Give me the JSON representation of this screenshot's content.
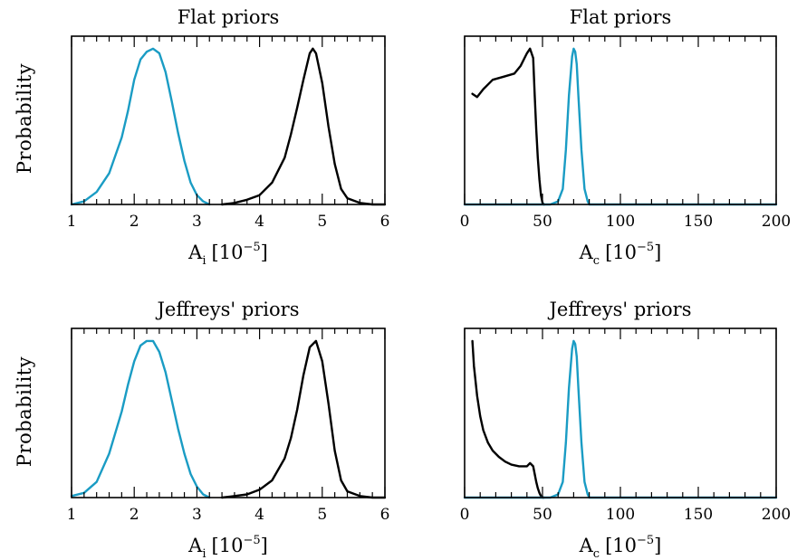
{
  "figure": {
    "ylabel": "Probability"
  },
  "colors": {
    "cyan": "#1a9cc4",
    "black": "#000000"
  },
  "chart_data": [
    {
      "id": "top-left",
      "type": "line",
      "title": "Flat priors",
      "xlabel": {
        "base": "A",
        "sub": "i",
        "unit": "[10",
        "exp": "−5",
        "close": "]"
      },
      "ylabel": "Probability",
      "xlim": [
        1,
        6
      ],
      "ylim": [
        0,
        1.08
      ],
      "xticks": [
        1,
        2,
        3,
        4,
        5,
        6
      ],
      "minor_step": 0.2,
      "series": [
        {
          "color": "cyan",
          "x": [
            1.0,
            1.2,
            1.4,
            1.6,
            1.8,
            1.9,
            2.0,
            2.1,
            2.2,
            2.3,
            2.4,
            2.5,
            2.6,
            2.7,
            2.8,
            2.9,
            3.0,
            3.1,
            3.2
          ],
          "y": [
            0.0,
            0.02,
            0.08,
            0.2,
            0.43,
            0.6,
            0.8,
            0.93,
            0.98,
            1.0,
            0.97,
            0.85,
            0.66,
            0.46,
            0.28,
            0.14,
            0.06,
            0.02,
            0.0
          ]
        },
        {
          "color": "black",
          "x": [
            3.4,
            3.6,
            3.8,
            4.0,
            4.2,
            4.4,
            4.5,
            4.6,
            4.7,
            4.8,
            4.85,
            4.9,
            5.0,
            5.1,
            5.2,
            5.3,
            5.4,
            5.6,
            5.8,
            6.0
          ],
          "y": [
            0.0,
            0.01,
            0.03,
            0.06,
            0.14,
            0.3,
            0.45,
            0.62,
            0.8,
            0.97,
            1.0,
            0.97,
            0.78,
            0.5,
            0.26,
            0.1,
            0.04,
            0.01,
            0.0,
            0.0
          ]
        }
      ]
    },
    {
      "id": "top-right",
      "type": "line",
      "title": "Flat priors",
      "xlabel": {
        "base": "A",
        "sub": "c",
        "unit": "[10",
        "exp": "−5",
        "close": "]"
      },
      "ylabel": "",
      "xlim": [
        0,
        200
      ],
      "ylim": [
        0,
        1.08
      ],
      "xticks": [
        0,
        50,
        100,
        150,
        200
      ],
      "minor_step": 10,
      "series": [
        {
          "color": "black",
          "x": [
            5,
            8,
            12,
            18,
            25,
            32,
            36,
            40,
            42,
            44,
            45,
            46,
            47,
            48,
            49,
            50,
            51
          ],
          "y": [
            0.71,
            0.69,
            0.74,
            0.8,
            0.82,
            0.84,
            0.89,
            0.97,
            1.0,
            0.94,
            0.7,
            0.48,
            0.3,
            0.16,
            0.06,
            0.01,
            0.0
          ]
        },
        {
          "color": "cyan",
          "x": [
            0,
            55,
            60,
            63,
            65,
            67,
            69,
            70,
            71,
            72,
            73,
            75,
            77,
            79,
            80,
            85,
            200
          ],
          "y": [
            0,
            0,
            0.02,
            0.1,
            0.35,
            0.7,
            0.95,
            1.0,
            0.98,
            0.9,
            0.7,
            0.35,
            0.1,
            0.02,
            0.0,
            0,
            0
          ]
        }
      ]
    },
    {
      "id": "bottom-left",
      "type": "line",
      "title": "Jeffreys' priors",
      "xlabel": {
        "base": "A",
        "sub": "i",
        "unit": "[10",
        "exp": "−5",
        "close": "]"
      },
      "ylabel": "Probability",
      "xlim": [
        1,
        6
      ],
      "ylim": [
        0,
        1.08
      ],
      "xticks": [
        1,
        2,
        3,
        4,
        5,
        6
      ],
      "minor_step": 0.2,
      "series": [
        {
          "color": "cyan",
          "x": [
            1.0,
            1.2,
            1.4,
            1.6,
            1.8,
            1.9,
            2.0,
            2.1,
            2.2,
            2.3,
            2.4,
            2.5,
            2.6,
            2.7,
            2.8,
            2.9,
            3.0,
            3.1,
            3.2
          ],
          "y": [
            0.01,
            0.03,
            0.1,
            0.28,
            0.55,
            0.72,
            0.87,
            0.97,
            1.0,
            1.0,
            0.93,
            0.8,
            0.62,
            0.44,
            0.28,
            0.15,
            0.07,
            0.02,
            0.0
          ]
        },
        {
          "color": "black",
          "x": [
            3.4,
            3.6,
            3.8,
            4.0,
            4.2,
            4.4,
            4.5,
            4.6,
            4.7,
            4.8,
            4.9,
            5.0,
            5.1,
            5.2,
            5.3,
            5.4,
            5.6,
            5.8,
            6.0
          ],
          "y": [
            0.0,
            0.01,
            0.02,
            0.05,
            0.11,
            0.25,
            0.38,
            0.56,
            0.78,
            0.96,
            1.0,
            0.87,
            0.6,
            0.3,
            0.11,
            0.04,
            0.01,
            0.0,
            0.0
          ]
        }
      ]
    },
    {
      "id": "bottom-right",
      "type": "line",
      "title": "Jeffreys' priors",
      "xlabel": {
        "base": "A",
        "sub": "c",
        "unit": "[10",
        "exp": "−5",
        "close": "]"
      },
      "ylabel": "",
      "xlim": [
        0,
        200
      ],
      "ylim": [
        0,
        1.08
      ],
      "xticks": [
        0,
        50,
        100,
        150,
        200
      ],
      "minor_step": 10,
      "series": [
        {
          "color": "black",
          "x": [
            5,
            6,
            8,
            10,
            12,
            15,
            18,
            22,
            26,
            30,
            35,
            40,
            42,
            44,
            45,
            46,
            47,
            48,
            49,
            50,
            51
          ],
          "y": [
            1.0,
            0.84,
            0.65,
            0.52,
            0.43,
            0.35,
            0.3,
            0.26,
            0.23,
            0.21,
            0.2,
            0.2,
            0.22,
            0.2,
            0.15,
            0.1,
            0.06,
            0.03,
            0.01,
            0.0,
            0.0
          ]
        },
        {
          "color": "cyan",
          "x": [
            0,
            55,
            60,
            63,
            65,
            67,
            69,
            70,
            71,
            72,
            73,
            75,
            77,
            79,
            80,
            85,
            200
          ],
          "y": [
            0,
            0,
            0.02,
            0.1,
            0.35,
            0.7,
            0.95,
            1.0,
            0.98,
            0.9,
            0.7,
            0.35,
            0.1,
            0.02,
            0.0,
            0,
            0
          ]
        }
      ]
    }
  ]
}
